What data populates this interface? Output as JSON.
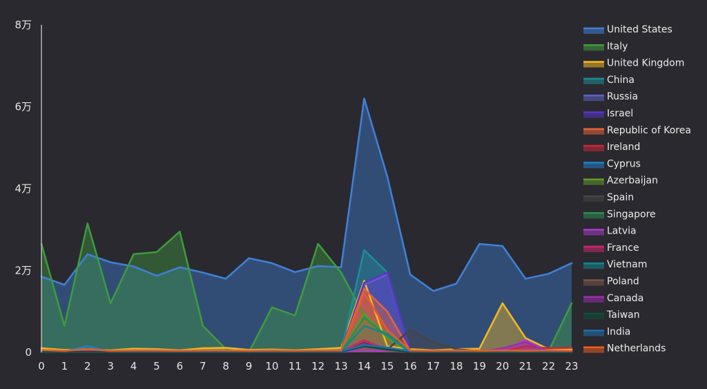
{
  "chart_data": {
    "type": "area",
    "title": "",
    "xlabel": "",
    "ylabel": "",
    "x": [
      0,
      1,
      2,
      3,
      4,
      5,
      6,
      7,
      8,
      9,
      10,
      11,
      12,
      13,
      14,
      15,
      16,
      17,
      18,
      19,
      20,
      21,
      22,
      23
    ],
    "x_tick_labels": [
      "0",
      "1",
      "2",
      "3",
      "4",
      "5",
      "6",
      "7",
      "8",
      "9",
      "10",
      "11",
      "12",
      "13",
      "14",
      "15",
      "16",
      "17",
      "18",
      "19",
      "20",
      "21",
      "22",
      "23"
    ],
    "ylim": [
      0,
      80000
    ],
    "y_ticks": [
      {
        "value": 0,
        "label": "0"
      },
      {
        "value": 20000,
        "label": "2万"
      },
      {
        "value": 40000,
        "label": "4万"
      },
      {
        "value": 60000,
        "label": "6万"
      },
      {
        "value": 80000,
        "label": "8万"
      }
    ],
    "grid": false,
    "legend_position": "right",
    "series": [
      {
        "name": "United States",
        "color": "#3f80d6",
        "values": [
          18500,
          16500,
          24000,
          22000,
          21000,
          18700,
          20800,
          19500,
          18000,
          23000,
          21800,
          19600,
          21100,
          20800,
          62000,
          43000,
          19000,
          15000,
          16800,
          26500,
          26000,
          18000,
          19200,
          21800
        ]
      },
      {
        "name": "Italy",
        "color": "#3f9a3f",
        "values": [
          26500,
          6500,
          31500,
          12000,
          24000,
          24500,
          29500,
          6500,
          800,
          0,
          11000,
          9000,
          26500,
          19500,
          9000,
          4500,
          600,
          300,
          200,
          200,
          300,
          200,
          300,
          12000
        ]
      },
      {
        "name": "United Kingdom",
        "color": "#f0b823",
        "values": [
          1000,
          600,
          800,
          500,
          900,
          800,
          500,
          1000,
          1100,
          600,
          700,
          500,
          800,
          1100,
          17500,
          1500,
          800,
          500,
          800,
          900,
          12000,
          3500,
          800,
          700
        ]
      },
      {
        "name": "China",
        "color": "#1c8d93",
        "values": [
          100,
          100,
          100,
          100,
          100,
          100,
          100,
          100,
          100,
          100,
          100,
          100,
          100,
          200,
          25000,
          19500,
          200,
          100,
          100,
          100,
          100,
          100,
          100,
          100
        ]
      },
      {
        "name": "Russia",
        "color": "#5c62c2",
        "values": [
          100,
          100,
          100,
          100,
          100,
          100,
          100,
          100,
          100,
          100,
          100,
          100,
          100,
          300,
          16500,
          19000,
          300,
          100,
          100,
          100,
          100,
          100,
          100,
          100
        ]
      },
      {
        "name": "Israel",
        "color": "#5a34c9",
        "values": [
          100,
          100,
          100,
          100,
          100,
          100,
          100,
          100,
          100,
          100,
          100,
          100,
          100,
          200,
          17000,
          19500,
          200,
          100,
          100,
          100,
          100,
          100,
          100,
          100
        ]
      },
      {
        "name": "Republic of Korea",
        "color": "#e8623a",
        "values": [
          300,
          200,
          300,
          200,
          300,
          300,
          200,
          300,
          300,
          200,
          300,
          200,
          300,
          300,
          15500,
          10000,
          300,
          200,
          300,
          200,
          300,
          200,
          300,
          200
        ]
      },
      {
        "name": "Ireland",
        "color": "#c8283c",
        "values": [
          200,
          100,
          200,
          100,
          200,
          200,
          100,
          200,
          200,
          100,
          200,
          100,
          200,
          200,
          3000,
          500,
          200,
          100,
          200,
          100,
          200,
          1500,
          1000,
          1100
        ]
      },
      {
        "name": "Cyprus",
        "color": "#1f7fc9",
        "values": [
          200,
          300,
          1500,
          200,
          200,
          200,
          200,
          200,
          200,
          200,
          200,
          200,
          200,
          200,
          1800,
          600,
          200,
          200,
          200,
          200,
          200,
          200,
          200,
          200
        ]
      },
      {
        "name": "Azerbaijan",
        "color": "#5e9a2a",
        "values": [
          100,
          100,
          100,
          100,
          100,
          100,
          100,
          100,
          100,
          100,
          100,
          100,
          100,
          100,
          9500,
          3500,
          100,
          100,
          100,
          100,
          100,
          100,
          100,
          100
        ]
      },
      {
        "name": "Spain",
        "color": "#454545",
        "values": [
          200,
          100,
          200,
          100,
          200,
          200,
          100,
          200,
          200,
          100,
          200,
          100,
          200,
          200,
          2500,
          700,
          5500,
          2500,
          800,
          300,
          200,
          200,
          200,
          200
        ]
      },
      {
        "name": "Singapore",
        "color": "#2f8a4f",
        "values": [
          100,
          100,
          100,
          100,
          100,
          100,
          100,
          100,
          100,
          100,
          100,
          100,
          100,
          100,
          8500,
          4000,
          100,
          100,
          100,
          100,
          100,
          100,
          100,
          100
        ]
      },
      {
        "name": "Latvia",
        "color": "#a33dc6",
        "values": [
          100,
          100,
          100,
          100,
          100,
          100,
          100,
          100,
          100,
          100,
          100,
          100,
          100,
          100,
          500,
          300,
          100,
          100,
          100,
          100,
          500,
          3000,
          100,
          100
        ]
      },
      {
        "name": "France",
        "color": "#c82a6e",
        "values": [
          300,
          200,
          300,
          200,
          300,
          300,
          200,
          300,
          300,
          200,
          300,
          200,
          300,
          300,
          2800,
          800,
          300,
          200,
          300,
          200,
          300,
          200,
          300,
          200
        ]
      },
      {
        "name": "Vietnam",
        "color": "#13868d",
        "values": [
          100,
          100,
          100,
          100,
          100,
          100,
          100,
          100,
          100,
          100,
          100,
          100,
          100,
          100,
          6500,
          4500,
          100,
          100,
          100,
          100,
          100,
          100,
          100,
          100
        ]
      },
      {
        "name": "Poland",
        "color": "#7a554a",
        "values": [
          100,
          100,
          100,
          100,
          100,
          100,
          100,
          100,
          100,
          100,
          100,
          100,
          100,
          100,
          1500,
          500,
          100,
          100,
          100,
          100,
          100,
          100,
          100,
          100
        ]
      },
      {
        "name": "Canada",
        "color": "#9a2fae",
        "values": [
          100,
          100,
          100,
          100,
          100,
          100,
          100,
          100,
          100,
          100,
          100,
          100,
          100,
          100,
          2000,
          800,
          100,
          100,
          100,
          100,
          1000,
          2500,
          100,
          100
        ]
      },
      {
        "name": "Taiwan",
        "color": "#0e4f3a",
        "values": [
          100,
          100,
          100,
          100,
          100,
          100,
          100,
          100,
          100,
          100,
          100,
          100,
          100,
          100,
          1500,
          700,
          100,
          100,
          100,
          100,
          100,
          100,
          100,
          100
        ]
      },
      {
        "name": "India",
        "color": "#1d6fa7",
        "values": [
          500,
          300,
          800,
          300,
          300,
          300,
          300,
          300,
          300,
          300,
          300,
          300,
          300,
          300,
          1800,
          1200,
          300,
          300,
          300,
          300,
          300,
          300,
          300,
          300
        ]
      },
      {
        "name": "Netherlands",
        "color": "#ec5b1f",
        "values": [
          600,
          400,
          800,
          400,
          500,
          500,
          400,
          500,
          500,
          400,
          500,
          400,
          500,
          500,
          14500,
          5500,
          500,
          400,
          500,
          400,
          500,
          400,
          500,
          400
        ]
      }
    ]
  }
}
